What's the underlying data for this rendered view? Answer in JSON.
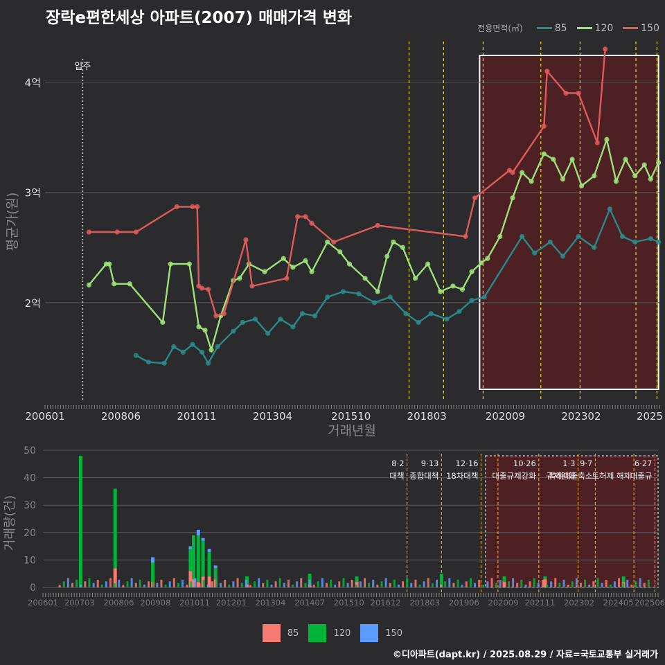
{
  "title": "장락e편한세상 아파트(2007) 매매가격 변화",
  "footer": "©디아파트(dapt.kr) / 2025.08.29 / 자료=국토교통부 실거래가",
  "legend": {
    "title": "전용면적(㎡)",
    "items": [
      {
        "label": "85",
        "color": "#2a8a8a"
      },
      {
        "label": "120",
        "color": "#9ee27a"
      },
      {
        "label": "150",
        "color": "#e05a5a"
      }
    ]
  },
  "bar_legend": [
    {
      "label": "85",
      "color": "#f77b72"
    },
    {
      "label": "120",
      "color": "#00b43a"
    },
    {
      "label": "150",
      "color": "#5b9bff"
    }
  ],
  "chart_data": [
    {
      "type": "line",
      "title": "장락e편한세상 아파트(2007) 매매가격 변화",
      "xlabel": "거래년월",
      "ylabel": "평균가(원)",
      "x_ticks": [
        "200601",
        "200806",
        "201011",
        "201304",
        "201510",
        "201803",
        "202009",
        "202302",
        "2025"
      ],
      "y_ticks": [
        "2억",
        "3억",
        "4억"
      ],
      "ylim": [
        1.1,
        4.4
      ],
      "move_in": {
        "label": "입주",
        "t": 2007.2
      },
      "policy_years": [
        2017.6,
        2018.7,
        2019.96,
        2021.8,
        2023.05,
        2024.83,
        2025.5
      ],
      "highlight_range": [
        2019.85,
        2025.55
      ],
      "series": [
        {
          "name": "150",
          "points": [
            [
              2007.4,
              2.64
            ],
            [
              2008.3,
              2.64
            ],
            [
              2008.9,
              2.64
            ],
            [
              2010.2,
              2.87
            ],
            [
              2010.7,
              2.87
            ],
            [
              2010.85,
              2.87
            ],
            [
              2010.9,
              2.15
            ],
            [
              2011.0,
              2.13
            ],
            [
              2011.2,
              2.12
            ],
            [
              2011.45,
              1.88
            ],
            [
              2011.7,
              1.9
            ],
            [
              2012.4,
              2.57
            ],
            [
              2012.6,
              2.15
            ],
            [
              2013.7,
              2.22
            ],
            [
              2014.05,
              2.78
            ],
            [
              2014.3,
              2.78
            ],
            [
              2014.5,
              2.72
            ],
            [
              2015.2,
              2.55
            ],
            [
              2016.6,
              2.7
            ],
            [
              2019.4,
              2.6
            ],
            [
              2019.7,
              2.95
            ],
            [
              2020.8,
              3.2
            ],
            [
              2020.9,
              3.18
            ],
            [
              2021.9,
              3.6
            ],
            [
              2022.0,
              4.1
            ],
            [
              2022.6,
              3.9
            ],
            [
              2023.0,
              3.9
            ],
            [
              2023.6,
              3.45
            ],
            [
              2023.85,
              4.3
            ]
          ]
        },
        {
          "name": "120",
          "points": [
            [
              2007.4,
              2.16
            ],
            [
              2007.95,
              2.35
            ],
            [
              2008.05,
              2.35
            ],
            [
              2008.2,
              2.17
            ],
            [
              2008.7,
              2.17
            ],
            [
              2009.75,
              1.82
            ],
            [
              2010.0,
              2.35
            ],
            [
              2010.6,
              2.35
            ],
            [
              2010.9,
              1.78
            ],
            [
              2011.1,
              1.75
            ],
            [
              2011.3,
              1.57
            ],
            [
              2011.6,
              1.88
            ],
            [
              2012.0,
              2.2
            ],
            [
              2012.2,
              2.22
            ],
            [
              2012.5,
              2.35
            ],
            [
              2013.0,
              2.28
            ],
            [
              2013.6,
              2.4
            ],
            [
              2013.9,
              2.32
            ],
            [
              2014.3,
              2.38
            ],
            [
              2014.5,
              2.28
            ],
            [
              2015.0,
              2.55
            ],
            [
              2015.4,
              2.46
            ],
            [
              2015.7,
              2.35
            ],
            [
              2016.2,
              2.22
            ],
            [
              2016.6,
              2.1
            ],
            [
              2016.9,
              2.42
            ],
            [
              2017.1,
              2.55
            ],
            [
              2017.4,
              2.5
            ],
            [
              2017.8,
              2.22
            ],
            [
              2018.2,
              2.35
            ],
            [
              2018.6,
              2.1
            ],
            [
              2019.0,
              2.15
            ],
            [
              2019.3,
              2.12
            ],
            [
              2019.6,
              2.28
            ],
            [
              2019.9,
              2.36
            ],
            [
              2020.1,
              2.4
            ],
            [
              2020.5,
              2.6
            ],
            [
              2020.9,
              2.95
            ],
            [
              2021.2,
              3.18
            ],
            [
              2021.5,
              3.1
            ],
            [
              2021.9,
              3.35
            ],
            [
              2022.2,
              3.3
            ],
            [
              2022.5,
              3.12
            ],
            [
              2022.8,
              3.3
            ],
            [
              2023.1,
              3.06
            ],
            [
              2023.5,
              3.15
            ],
            [
              2023.9,
              3.48
            ],
            [
              2024.2,
              3.1
            ],
            [
              2024.5,
              3.3
            ],
            [
              2024.8,
              3.15
            ],
            [
              2025.1,
              3.25
            ],
            [
              2025.3,
              3.12
            ],
            [
              2025.55,
              3.27
            ]
          ]
        },
        {
          "name": "85",
          "points": [
            [
              2008.9,
              1.52
            ],
            [
              2009.3,
              1.46
            ],
            [
              2009.8,
              1.45
            ],
            [
              2010.1,
              1.6
            ],
            [
              2010.4,
              1.55
            ],
            [
              2010.7,
              1.62
            ],
            [
              2011.0,
              1.55
            ],
            [
              2011.2,
              1.45
            ],
            [
              2011.5,
              1.6
            ],
            [
              2012.0,
              1.74
            ],
            [
              2012.3,
              1.82
            ],
            [
              2012.7,
              1.85
            ],
            [
              2013.1,
              1.72
            ],
            [
              2013.5,
              1.85
            ],
            [
              2013.9,
              1.78
            ],
            [
              2014.2,
              1.9
            ],
            [
              2014.6,
              1.88
            ],
            [
              2015.0,
              2.05
            ],
            [
              2015.5,
              2.1
            ],
            [
              2016.0,
              2.08
            ],
            [
              2016.5,
              2.0
            ],
            [
              2017.0,
              2.05
            ],
            [
              2017.5,
              1.9
            ],
            [
              2017.9,
              1.82
            ],
            [
              2018.3,
              1.9
            ],
            [
              2018.8,
              1.85
            ],
            [
              2019.2,
              1.92
            ],
            [
              2019.6,
              2.02
            ],
            [
              2020.0,
              2.05
            ],
            [
              2021.2,
              2.6
            ],
            [
              2021.6,
              2.45
            ],
            [
              2022.1,
              2.55
            ],
            [
              2022.5,
              2.42
            ],
            [
              2023.0,
              2.6
            ],
            [
              2023.5,
              2.5
            ],
            [
              2024.0,
              2.85
            ],
            [
              2024.4,
              2.6
            ],
            [
              2024.8,
              2.55
            ],
            [
              2025.3,
              2.58
            ],
            [
              2025.55,
              2.55
            ]
          ]
        }
      ]
    },
    {
      "type": "bar",
      "ylabel": "거래량(건)",
      "ylim": [
        0,
        50
      ],
      "y_ticks": [
        0,
        10,
        20,
        30,
        40,
        50
      ],
      "x_ticks": [
        "200601",
        "200703",
        "200806",
        "200908",
        "201011",
        "201201",
        "201304",
        "201407",
        "201510",
        "201612",
        "201803",
        "201906",
        "202009",
        "202111",
        "202302",
        "202405",
        "202506"
      ],
      "stacks": [
        "85",
        "120",
        "150"
      ],
      "bars": [
        {
          "t": 2007.2,
          "values": [
            0,
            48,
            0
          ]
        },
        {
          "t": 2008.3,
          "values": [
            7,
            29,
            0
          ]
        },
        {
          "t": 2009.5,
          "values": [
            2,
            7,
            2
          ]
        },
        {
          "t": 2010.7,
          "values": [
            6,
            8,
            1
          ]
        },
        {
          "t": 2010.8,
          "values": [
            3,
            16,
            0
          ]
        },
        {
          "t": 2010.95,
          "values": [
            2,
            17,
            2
          ]
        },
        {
          "t": 2011.1,
          "values": [
            4,
            13,
            1
          ]
        },
        {
          "t": 2011.3,
          "values": [
            4,
            9,
            1
          ]
        },
        {
          "t": 2011.5,
          "values": [
            3,
            4,
            1
          ]
        },
        {
          "t": 2012.5,
          "values": [
            1,
            3,
            0
          ]
        },
        {
          "t": 2014.5,
          "values": [
            1,
            4,
            0
          ]
        },
        {
          "t": 2016.0,
          "values": [
            2,
            2,
            0
          ]
        },
        {
          "t": 2018.7,
          "values": [
            0,
            5,
            0
          ]
        },
        {
          "t": 2020.7,
          "values": [
            2,
            2,
            0
          ]
        },
        {
          "t": 2022.0,
          "values": [
            3,
            1,
            0
          ]
        },
        {
          "t": 2024.5,
          "values": [
            2,
            2,
            0
          ]
        }
      ],
      "policies": [
        {
          "t": 2017.6,
          "date": "8·2",
          "label": "대책"
        },
        {
          "t": 2018.7,
          "date": "9·13",
          "label": "종합대책"
        },
        {
          "t": 2019.96,
          "date": "12·16",
          "label": "18차대책"
        },
        {
          "t": 2020.5,
          "date": "",
          "label": ""
        },
        {
          "t": 2021.8,
          "date": "10·26",
          "label": "대출규제강화"
        },
        {
          "t": 2023.05,
          "date": "1·3",
          "label": "규제완화"
        },
        {
          "t": 2023.6,
          "date": "9·7",
          "label": "특례대출축소"
        },
        {
          "t": 2024.83,
          "date": "",
          "label": "토허제 해제"
        },
        {
          "t": 2025.5,
          "date": "6·27",
          "label": "대출규"
        }
      ],
      "highlight_range": [
        2020.1,
        2025.6
      ]
    }
  ]
}
